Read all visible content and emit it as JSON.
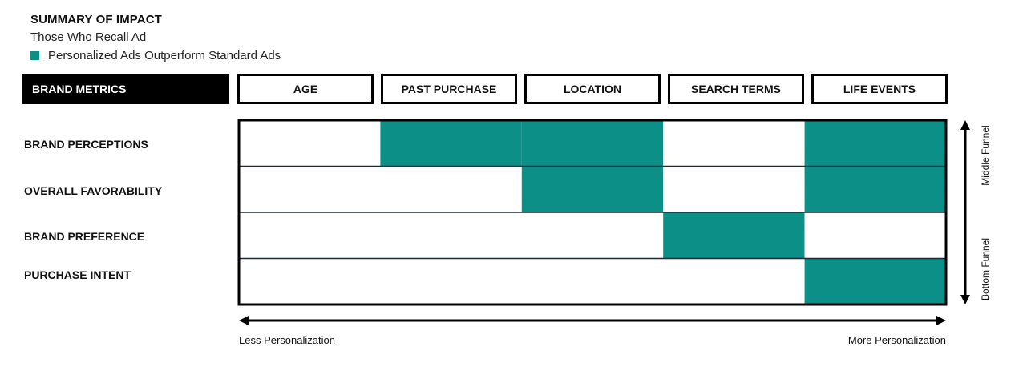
{
  "title": "SUMMARY OF IMPACT",
  "subtitle": "Those Who Recall Ad",
  "legend": {
    "label": "Personalized Ads Outperform Standard Ads",
    "color": "#0b8f87"
  },
  "header": {
    "metrics_label": "BRAND METRICS"
  },
  "chart_data": {
    "type": "heatmap",
    "columns": [
      "AGE",
      "PAST PURCHASE",
      "LOCATION",
      "SEARCH TERMS",
      "LIFE EVENTS"
    ],
    "rows": [
      "BRAND PERCEPTIONS",
      "OVERALL FAVORABILITY",
      "BRAND PREFERENCE",
      "PURCHASE INTENT"
    ],
    "values": [
      [
        0,
        1,
        1,
        0,
        1
      ],
      [
        0,
        0,
        1,
        0,
        1
      ],
      [
        0,
        0,
        0,
        1,
        0
      ],
      [
        0,
        0,
        0,
        0,
        1
      ]
    ],
    "x_axis": {
      "left_label": "Less Personalization",
      "right_label": "More Personalization"
    },
    "y_axis": {
      "top_label": "Middle Funnel",
      "bottom_label": "Bottom Funnel"
    },
    "colors": {
      "filled": "#0b8f87",
      "empty": "#ffffff",
      "grid": "#1b2a3a"
    }
  }
}
